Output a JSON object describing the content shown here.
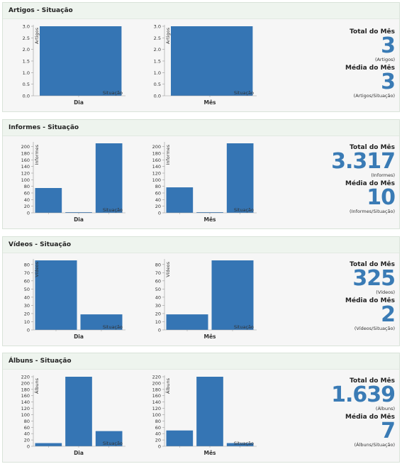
{
  "colors": {
    "bar": "#3575b4",
    "value": "#3a7bb5",
    "axis": "#999999"
  },
  "labels": {
    "total": "Total do Mês",
    "media": "Média do Mês"
  },
  "sections": [
    {
      "title": "Artigos - Situação",
      "total": "3",
      "total_unit": "(Artigos)",
      "media": "3",
      "media_unit": "(Artigos/Situação)"
    },
    {
      "title": "Informes - Situação",
      "total": "3.317",
      "total_unit": "(Informes)",
      "media": "10",
      "media_unit": "(Informes/Situação)"
    },
    {
      "title": "Vídeos - Situação",
      "total": "325",
      "total_unit": "(Vídeos)",
      "media": "2",
      "media_unit": "(Vídeos/Situação)"
    },
    {
      "title": "Álbuns - Situação",
      "total": "1.639",
      "total_unit": "(Álbuns)",
      "media": "7",
      "media_unit": "(Álbuns/Situação)"
    }
  ],
  "chart_data": [
    {
      "type": "bar",
      "xlabel": "Dia",
      "ylabel": "Artigos",
      "legend": "Situação",
      "ylim": [
        0,
        3
      ],
      "ticks": [
        "0.0",
        "0.5",
        "1.0",
        "1.5",
        "2.0",
        "2.5",
        "3.0"
      ],
      "values": [
        3
      ]
    },
    {
      "type": "bar",
      "xlabel": "Mês",
      "ylabel": "Artigos",
      "legend": "Situação",
      "ylim": [
        0,
        3
      ],
      "ticks": [
        "0.0",
        "0.5",
        "1.0",
        "1.5",
        "2.0",
        "2.5",
        "3.0"
      ],
      "values": [
        3
      ]
    },
    {
      "type": "bar",
      "xlabel": "Dia",
      "ylabel": "Informes",
      "legend": "Situação",
      "ylim": [
        0,
        210
      ],
      "ticks": [
        "0",
        "20",
        "40",
        "60",
        "80",
        "100",
        "120",
        "140",
        "160",
        "180",
        "200"
      ],
      "values": [
        75,
        2,
        210
      ]
    },
    {
      "type": "bar",
      "xlabel": "Mês",
      "ylabel": "Informes",
      "legend": "Situação",
      "ylim": [
        0,
        210
      ],
      "ticks": [
        "0",
        "20",
        "40",
        "60",
        "80",
        "100",
        "120",
        "140",
        "160",
        "180",
        "200"
      ],
      "values": [
        77,
        2,
        210
      ]
    },
    {
      "type": "bar",
      "xlabel": "Dia",
      "ylabel": "Vídeos",
      "legend": "Situação",
      "ylim": [
        0,
        85
      ],
      "ticks": [
        "0",
        "10",
        "20",
        "30",
        "40",
        "50",
        "60",
        "70",
        "80"
      ],
      "values": [
        85,
        19
      ]
    },
    {
      "type": "bar",
      "xlabel": "Mês",
      "ylabel": "Vídeos",
      "legend": "Situação",
      "ylim": [
        0,
        85
      ],
      "ticks": [
        "0",
        "10",
        "20",
        "30",
        "40",
        "50",
        "60",
        "70",
        "80"
      ],
      "values": [
        19,
        85
      ]
    },
    {
      "type": "bar",
      "xlabel": "Dia",
      "ylabel": "Álbuns",
      "legend": "Situação",
      "ylim": [
        0,
        220
      ],
      "ticks": [
        "0",
        "20",
        "40",
        "60",
        "80",
        "100",
        "120",
        "140",
        "160",
        "180",
        "200",
        "220"
      ],
      "values": [
        10,
        220,
        48
      ]
    },
    {
      "type": "bar",
      "xlabel": "Mês",
      "ylabel": "Álbuns",
      "legend": "Situação",
      "ylim": [
        0,
        220
      ],
      "ticks": [
        "0",
        "20",
        "40",
        "60",
        "80",
        "100",
        "120",
        "140",
        "160",
        "180",
        "200",
        "220"
      ],
      "values": [
        50,
        220,
        10
      ]
    }
  ]
}
